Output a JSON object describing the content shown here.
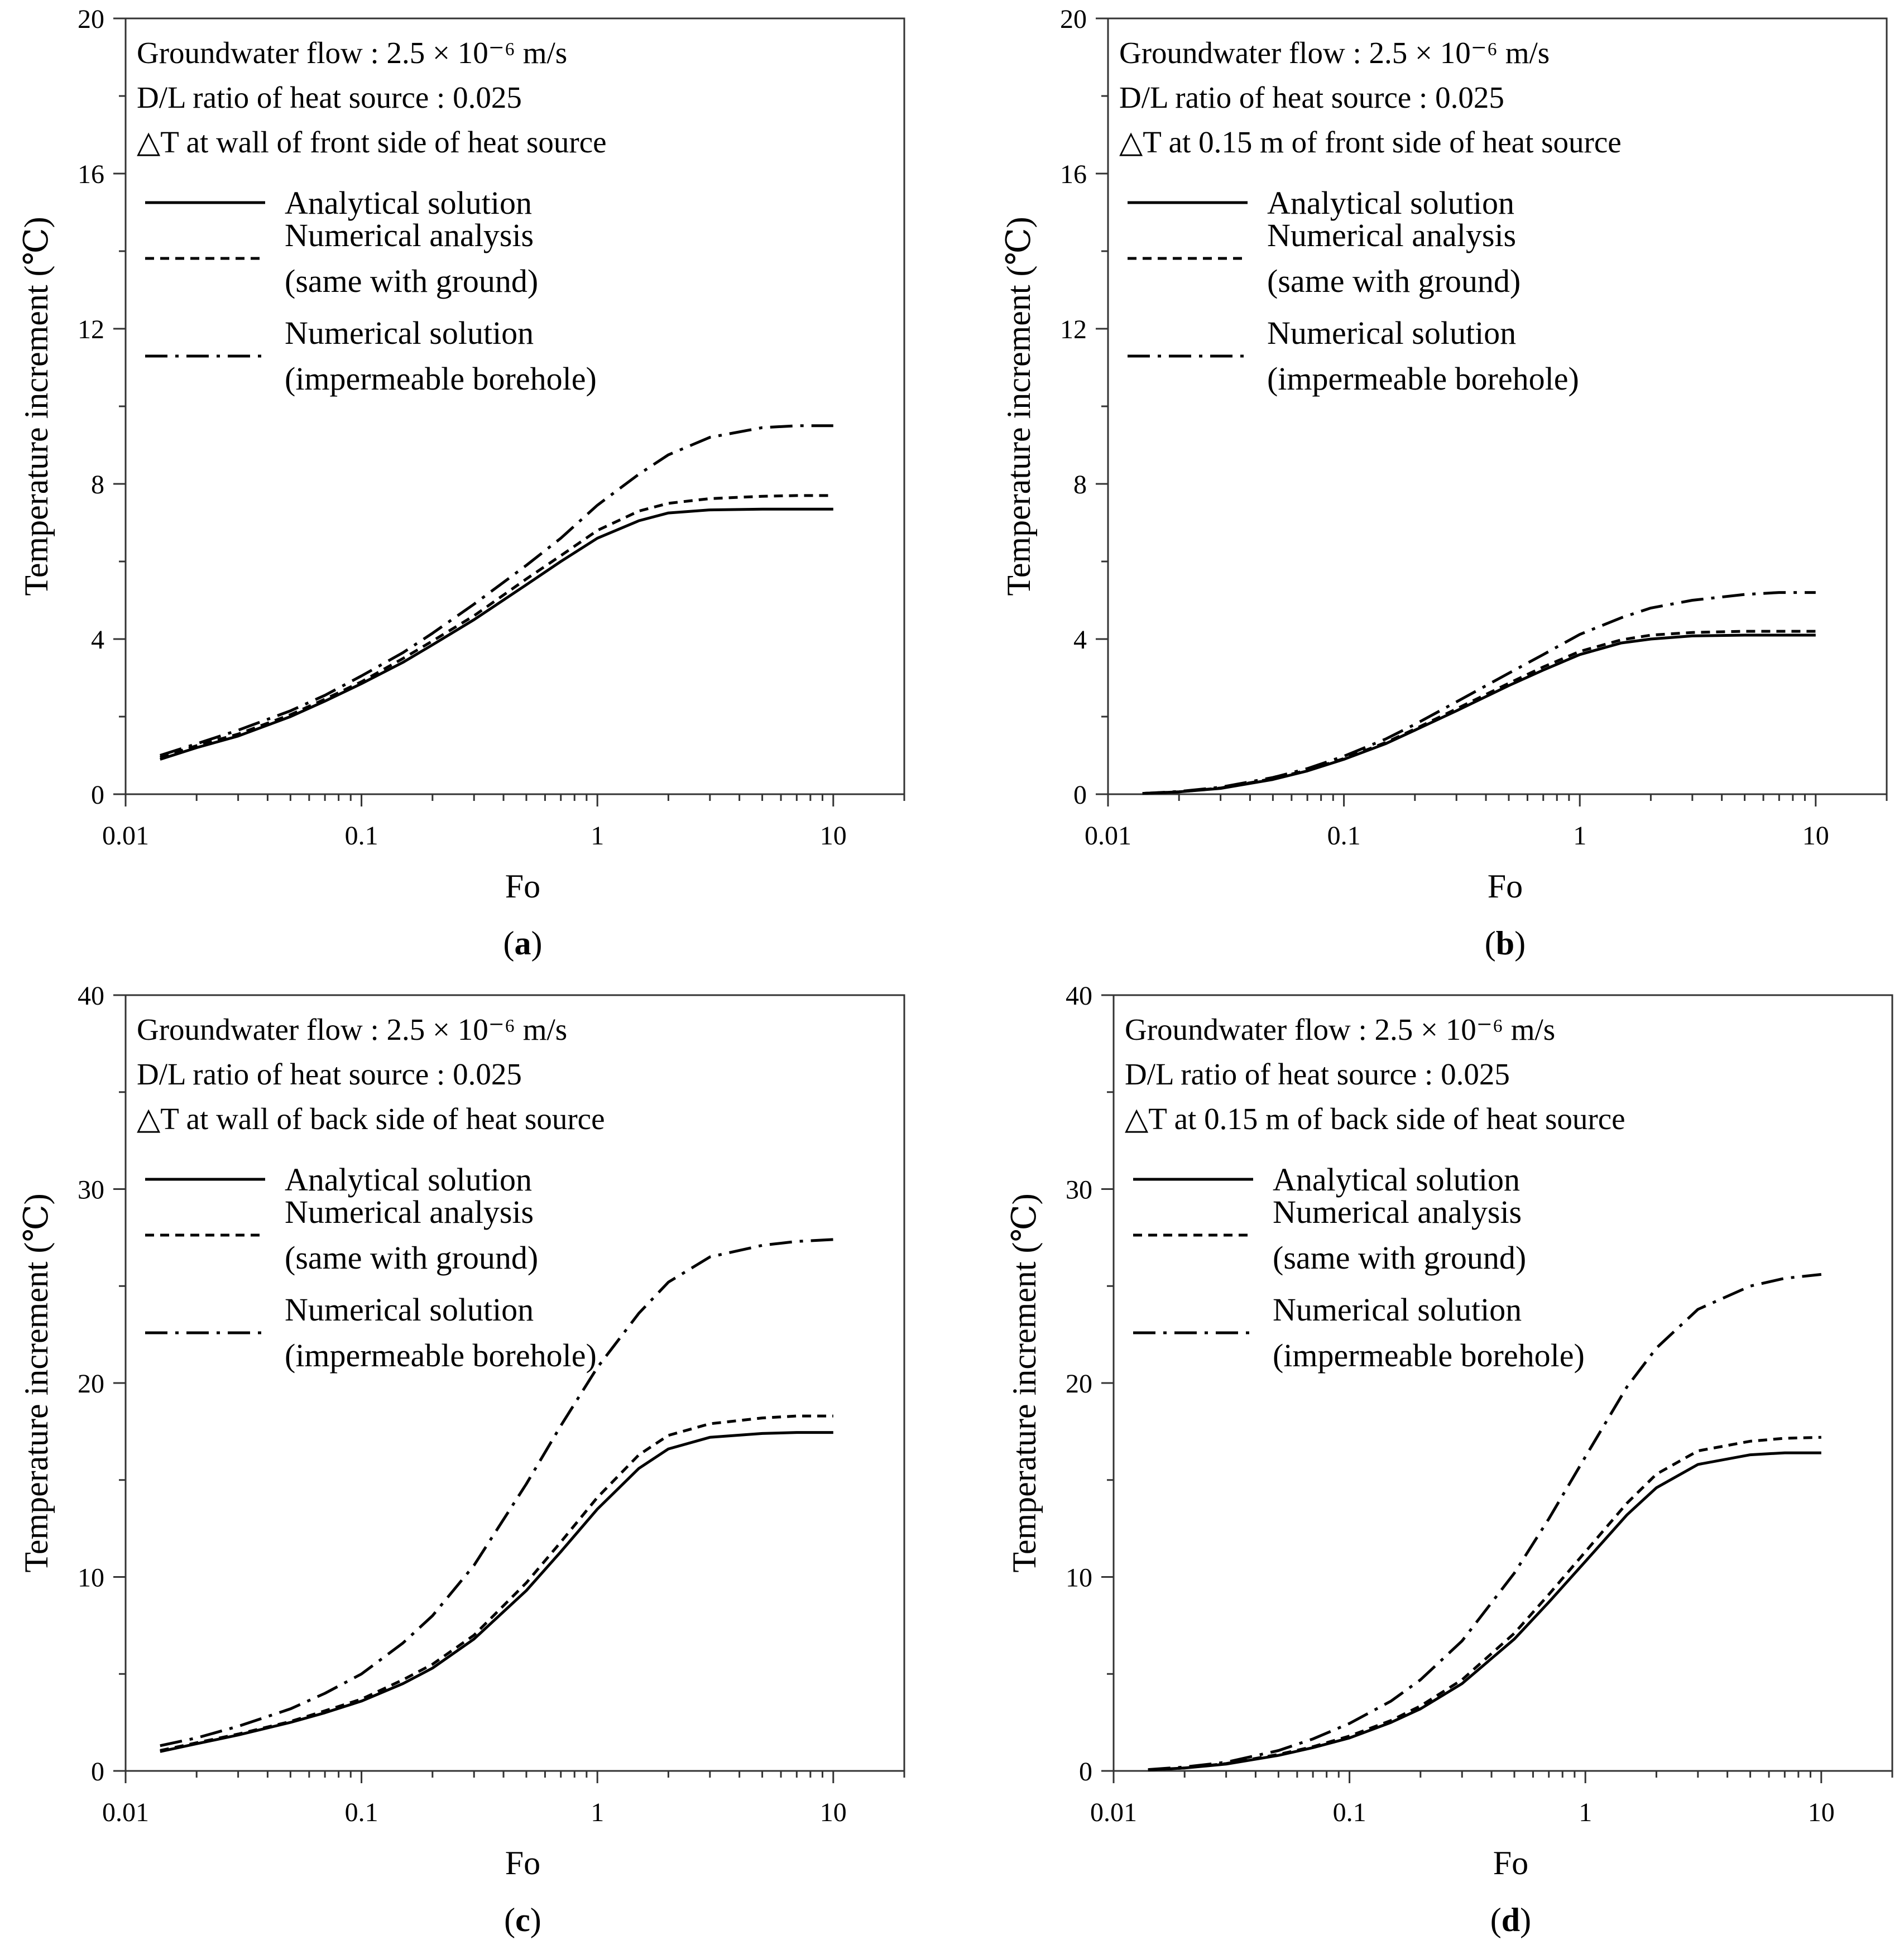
{
  "panels": [
    {
      "id": "a",
      "caption_letter": "a",
      "annotations": [
        "Groundwater flow : 2.5 × 10⁻⁶ m/s",
        "D/L ratio of heat source : 0.025",
        "△T at wall of front side of heat source"
      ],
      "legend": [
        {
          "label": "Analytical solution"
        },
        {
          "label": "Numerical analysis",
          "label2": "(same with ground)"
        },
        {
          "label": "Numerical solution",
          "label2": "(impermeable borehole)"
        }
      ]
    },
    {
      "id": "b",
      "caption_letter": "b",
      "annotations": [
        "Groundwater flow : 2.5 × 10⁻⁶ m/s",
        "D/L ratio of heat source : 0.025",
        "△T at 0.15 m of front side of heat source"
      ],
      "legend": [
        {
          "label": "Analytical solution"
        },
        {
          "label": "Numerical analysis",
          "label2": "(same with ground)"
        },
        {
          "label": "Numerical solution",
          "label2": "(impermeable borehole)"
        }
      ]
    },
    {
      "id": "c",
      "caption_letter": "c",
      "annotations": [
        "Groundwater flow : 2.5 × 10⁻⁶ m/s",
        "D/L ratio of heat source : 0.025",
        "△T at wall of back side of heat source"
      ],
      "legend": [
        {
          "label": "Analytical solution"
        },
        {
          "label": "Numerical analysis",
          "label2": "(same with ground)"
        },
        {
          "label": "Numerical solution",
          "label2": "(impermeable borehole)"
        }
      ]
    },
    {
      "id": "d",
      "caption_letter": "d",
      "annotations": [
        "Groundwater flow : 2.5 × 10⁻⁶ m/s",
        "D/L ratio of heat source : 0.025",
        "△T at 0.15 m of back side of heat source"
      ],
      "legend": [
        {
          "label": "Analytical solution"
        },
        {
          "label": "Numerical analysis",
          "label2": "(same with ground)"
        },
        {
          "label": "Numerical solution",
          "label2": "(impermeable borehole)"
        }
      ]
    }
  ],
  "chart_data": [
    {
      "panel": "a",
      "type": "line",
      "xlabel": "Fo",
      "ylabel": "Temperature increment (℃)",
      "xscale": "log",
      "xlim": [
        0.01,
        20
      ],
      "ylim": [
        0,
        20
      ],
      "xticks": [
        0.01,
        0.1,
        1,
        10
      ],
      "xtick_labels": [
        "0.01",
        "0.1",
        "1",
        "10"
      ],
      "yticks": [
        0,
        4,
        8,
        12,
        16,
        20
      ],
      "ytick_labels": [
        "0",
        "4",
        "8",
        "12",
        "16",
        "20"
      ],
      "x": [
        0.014,
        0.02,
        0.03,
        0.05,
        0.07,
        0.1,
        0.15,
        0.2,
        0.3,
        0.5,
        0.7,
        1,
        1.5,
        2,
        3,
        5,
        7,
        10
      ],
      "series": [
        {
          "name": "Analytical solution",
          "style": "solid",
          "values": [
            0.9,
            1.2,
            1.5,
            2.0,
            2.4,
            2.85,
            3.4,
            3.85,
            4.5,
            5.4,
            6.0,
            6.6,
            7.05,
            7.25,
            7.33,
            7.35,
            7.35,
            7.35
          ]
        },
        {
          "name": "Numerical analysis (same with ground)",
          "style": "dashed",
          "values": [
            0.95,
            1.25,
            1.55,
            2.05,
            2.45,
            2.9,
            3.5,
            3.95,
            4.6,
            5.55,
            6.15,
            6.8,
            7.3,
            7.5,
            7.62,
            7.68,
            7.7,
            7.7
          ]
        },
        {
          "name": "Numerical solution (impermeable borehole)",
          "style": "dashdot",
          "values": [
            1.0,
            1.3,
            1.65,
            2.15,
            2.55,
            3.05,
            3.65,
            4.15,
            4.9,
            5.9,
            6.6,
            7.45,
            8.25,
            8.75,
            9.2,
            9.45,
            9.5,
            9.5
          ]
        }
      ]
    },
    {
      "panel": "b",
      "type": "line",
      "xlabel": "Fo",
      "ylabel": "Temperature increment (℃)",
      "xscale": "log",
      "xlim": [
        0.01,
        20
      ],
      "ylim": [
        0,
        20
      ],
      "xticks": [
        0.01,
        0.1,
        1,
        10
      ],
      "xtick_labels": [
        "0.01",
        "0.1",
        "1",
        "10"
      ],
      "yticks": [
        0,
        4,
        8,
        12,
        16,
        20
      ],
      "ytick_labels": [
        "0",
        "4",
        "8",
        "12",
        "16",
        "20"
      ],
      "x": [
        0.014,
        0.02,
        0.03,
        0.05,
        0.07,
        0.1,
        0.15,
        0.2,
        0.3,
        0.5,
        0.7,
        1,
        1.5,
        2,
        3,
        5,
        7,
        10
      ],
      "series": [
        {
          "name": "Analytical solution",
          "style": "solid",
          "values": [
            0.02,
            0.06,
            0.15,
            0.38,
            0.6,
            0.9,
            1.3,
            1.65,
            2.15,
            2.8,
            3.2,
            3.6,
            3.9,
            4.0,
            4.08,
            4.1,
            4.1,
            4.1
          ]
        },
        {
          "name": "Numerical analysis (same with ground)",
          "style": "dashed",
          "values": [
            0.02,
            0.06,
            0.16,
            0.4,
            0.62,
            0.92,
            1.33,
            1.68,
            2.2,
            2.86,
            3.28,
            3.68,
            3.98,
            4.1,
            4.17,
            4.2,
            4.2,
            4.2
          ]
        },
        {
          "name": "Numerical solution (impermeable borehole)",
          "style": "dashdot",
          "values": [
            0.02,
            0.07,
            0.18,
            0.43,
            0.66,
            0.98,
            1.42,
            1.8,
            2.38,
            3.12,
            3.6,
            4.12,
            4.55,
            4.8,
            5.0,
            5.15,
            5.2,
            5.2
          ]
        }
      ]
    },
    {
      "panel": "c",
      "type": "line",
      "xlabel": "Fo",
      "ylabel": "Temperature increment (℃)",
      "xscale": "log",
      "xlim": [
        0.01,
        20
      ],
      "ylim": [
        0,
        40
      ],
      "xticks": [
        0.01,
        0.1,
        1,
        10
      ],
      "xtick_labels": [
        "0.01",
        "0.1",
        "1",
        "10"
      ],
      "yticks": [
        0,
        10,
        20,
        30,
        40
      ],
      "ytick_labels": [
        "0",
        "10",
        "20",
        "30",
        "40"
      ],
      "x": [
        0.014,
        0.02,
        0.03,
        0.05,
        0.07,
        0.1,
        0.15,
        0.2,
        0.3,
        0.5,
        0.7,
        1,
        1.5,
        2,
        3,
        5,
        7,
        10
      ],
      "series": [
        {
          "name": "Analytical solution",
          "style": "solid",
          "values": [
            1.0,
            1.4,
            1.85,
            2.5,
            3.0,
            3.6,
            4.5,
            5.3,
            6.8,
            9.3,
            11.3,
            13.5,
            15.6,
            16.6,
            17.2,
            17.4,
            17.45,
            17.45
          ]
        },
        {
          "name": "Numerical analysis (same with ground)",
          "style": "dashed",
          "values": [
            1.05,
            1.45,
            1.9,
            2.55,
            3.1,
            3.7,
            4.7,
            5.5,
            7.0,
            9.7,
            11.8,
            14.1,
            16.3,
            17.3,
            17.9,
            18.2,
            18.3,
            18.3
          ]
        },
        {
          "name": "Numerical solution (impermeable borehole)",
          "style": "dashdot",
          "values": [
            1.3,
            1.7,
            2.3,
            3.2,
            4.0,
            5.0,
            6.6,
            8.0,
            10.6,
            14.8,
            17.8,
            20.8,
            23.6,
            25.2,
            26.5,
            27.1,
            27.3,
            27.4
          ]
        }
      ]
    },
    {
      "panel": "d",
      "type": "line",
      "xlabel": "Fo",
      "ylabel": "Temperature increment (℃)",
      "xscale": "log",
      "xlim": [
        0.01,
        20
      ],
      "ylim": [
        0,
        40
      ],
      "xticks": [
        0.01,
        0.1,
        1,
        10
      ],
      "xtick_labels": [
        "0.01",
        "0.1",
        "1",
        "10"
      ],
      "yticks": [
        0,
        10,
        20,
        30,
        40
      ],
      "ytick_labels": [
        "0",
        "10",
        "20",
        "30",
        "40"
      ],
      "x": [
        0.014,
        0.02,
        0.03,
        0.05,
        0.07,
        0.1,
        0.15,
        0.2,
        0.3,
        0.5,
        0.7,
        1,
        1.5,
        2,
        3,
        5,
        7,
        10
      ],
      "series": [
        {
          "name": "Analytical solution",
          "style": "solid",
          "values": [
            0.05,
            0.15,
            0.35,
            0.8,
            1.2,
            1.7,
            2.5,
            3.2,
            4.5,
            6.8,
            8.7,
            10.8,
            13.2,
            14.6,
            15.8,
            16.3,
            16.4,
            16.4
          ]
        },
        {
          "name": "Numerical analysis (same with ground)",
          "style": "dashed",
          "values": [
            0.05,
            0.15,
            0.38,
            0.85,
            1.25,
            1.8,
            2.6,
            3.35,
            4.7,
            7.1,
            9.1,
            11.3,
            13.8,
            15.3,
            16.5,
            17.0,
            17.15,
            17.2
          ]
        },
        {
          "name": "Numerical solution (impermeable borehole)",
          "style": "dashdot",
          "values": [
            0.07,
            0.2,
            0.45,
            1.05,
            1.65,
            2.45,
            3.6,
            4.7,
            6.7,
            10.2,
            13.0,
            16.2,
            19.8,
            21.8,
            23.8,
            25.0,
            25.4,
            25.6
          ]
        }
      ]
    }
  ]
}
